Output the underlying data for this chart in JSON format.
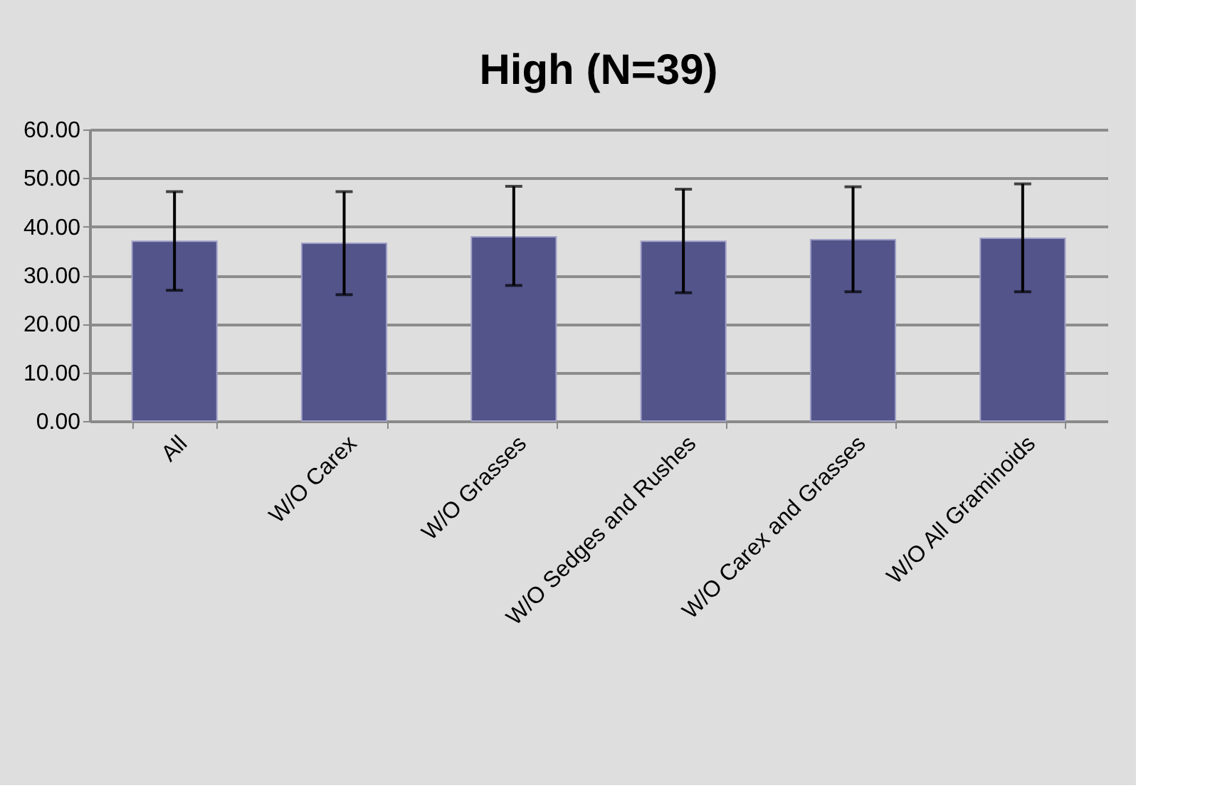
{
  "chart_data": {
    "type": "bar",
    "title": "High (N=39)",
    "categories": [
      "All",
      "W/O Carex",
      "W/O Grasses",
      "W/O Sedges and Rushes",
      "W/O Carex and Grasses",
      "W/O All Graminoids"
    ],
    "values": [
      37.0,
      36.6,
      37.9,
      37.0,
      37.3,
      37.6
    ],
    "errors": [
      [
        26.9,
        47.2
      ],
      [
        26.0,
        47.2
      ],
      [
        27.9,
        48.3
      ],
      [
        26.4,
        47.7
      ],
      [
        26.6,
        48.2
      ],
      [
        26.6,
        48.8
      ]
    ],
    "color": "#53548a",
    "ylim": [
      0,
      60
    ],
    "yticks": [
      {
        "value": 0,
        "label": "0.00"
      },
      {
        "value": 10,
        "label": "10.00"
      },
      {
        "value": 20,
        "label": "20.00"
      },
      {
        "value": 30,
        "label": "30.00"
      },
      {
        "value": 40,
        "label": "40.00"
      },
      {
        "value": 50,
        "label": "50.00"
      },
      {
        "value": 60,
        "label": "60.00"
      }
    ],
    "grid": "y"
  }
}
